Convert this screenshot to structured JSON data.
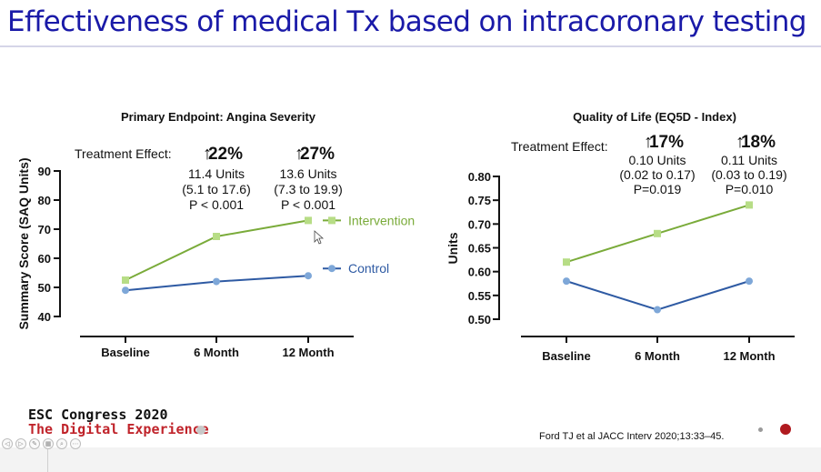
{
  "slide": {
    "title": "Effectiveness of medical Tx based on intracoronary testing",
    "conference_line1": "ESC Congress 2020",
    "conference_line2": "The Digital Experience",
    "citation": "Ford TJ et al JACC Interv 2020;13:33–45."
  },
  "toolbar": {
    "buttons": [
      {
        "name": "prev-slide-icon",
        "glyph": "◁"
      },
      {
        "name": "play-icon",
        "glyph": "▷"
      },
      {
        "name": "pen-icon",
        "glyph": "✎"
      },
      {
        "name": "slides-grid-icon",
        "glyph": "▦"
      },
      {
        "name": "zoom-icon",
        "glyph": "⌕"
      },
      {
        "name": "more-options-icon",
        "glyph": "⋯"
      }
    ]
  },
  "colors": {
    "title": "#1a1aa8",
    "intervention": "#7aab3a",
    "intervention_marker": "#b7dd86",
    "control": "#2e5aa3",
    "control_marker": "#7ea7d8",
    "conference_sub": "#c0242b"
  },
  "chart_data": [
    {
      "type": "line",
      "title": "Primary Endpoint: Angina Severity",
      "ylabel": "Summary Score (SAQ Units)",
      "xlabel": "",
      "categories": [
        "Baseline",
        "6 Month",
        "12 Month"
      ],
      "ylim": [
        40,
        90
      ],
      "yticks": [
        40,
        50,
        60,
        70,
        80,
        90
      ],
      "grid": false,
      "legend": "right",
      "series": [
        {
          "name": "Intervention",
          "values": [
            52.5,
            67.5,
            73
          ],
          "marker": "square"
        },
        {
          "name": "Control",
          "values": [
            49,
            52,
            54
          ],
          "marker": "circle"
        }
      ],
      "treatment_effect": {
        "label": "Treatment Effect:",
        "columns": [
          {
            "category": "6 Month",
            "pct": "22%",
            "lines": [
              "11.4 Units",
              "(5.1 to 17.6)",
              "P < 0.001"
            ]
          },
          {
            "category": "12 Month",
            "pct": "27%",
            "lines": [
              "13.6 Units",
              "(7.3 to 19.9)",
              "P < 0.001"
            ]
          }
        ]
      }
    },
    {
      "type": "line",
      "title": "Quality of Life (EQ5D - Index)",
      "ylabel": "Units",
      "xlabel": "",
      "categories": [
        "Baseline",
        "6 Month",
        "12 Month"
      ],
      "ylim": [
        0.5,
        0.8
      ],
      "yticks": [
        "0.50",
        "0.55",
        "0.60",
        "0.65",
        "0.70",
        "0.75",
        "0.80"
      ],
      "grid": false,
      "series": [
        {
          "values": [
            0.62,
            0.68,
            0.74
          ],
          "marker": "square"
        },
        {
          "values": [
            0.58,
            0.52,
            0.58
          ],
          "marker": "circle"
        }
      ],
      "treatment_effect": {
        "label": "Treatment Effect:",
        "columns": [
          {
            "category": "6 Month",
            "pct": "17%",
            "lines": [
              "0.10 Units",
              "(0.02 to 0.17)",
              "P=0.019"
            ]
          },
          {
            "category": "12 Month",
            "pct": "18%",
            "lines": [
              "0.11 Units",
              "(0.03 to 0.19)",
              "P=0.010"
            ]
          }
        ]
      }
    }
  ]
}
